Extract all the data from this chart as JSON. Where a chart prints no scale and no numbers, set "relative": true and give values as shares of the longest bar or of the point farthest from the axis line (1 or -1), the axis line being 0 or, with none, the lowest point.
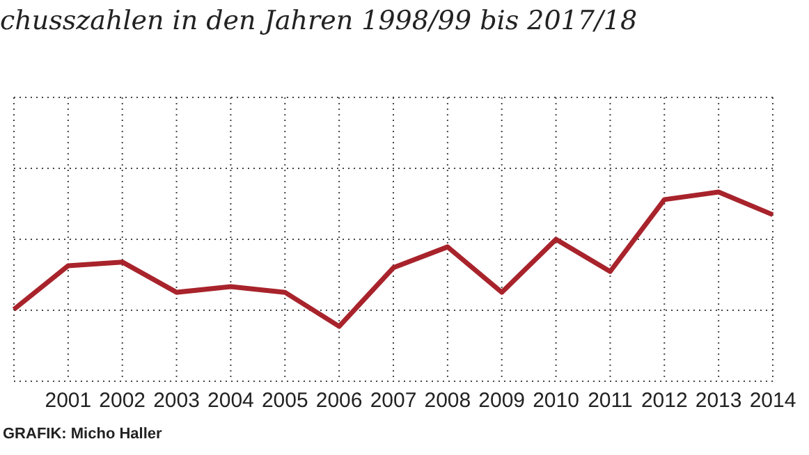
{
  "chart_data": {
    "type": "line",
    "title": "chusszahlen in den Jahren 1998/99 bis 2017/18",
    "relative": true,
    "categories": [
      null,
      "2001",
      "2002",
      "2003",
      "2004",
      "2005",
      "2006",
      "2007",
      "2008",
      "2009",
      "2010",
      "2011",
      "2012",
      "2013",
      "2014"
    ],
    "series": [
      {
        "color": "#a8232b",
        "values": [
          0.38,
          0.61,
          0.63,
          0.47,
          0.5,
          0.47,
          0.29,
          0.6,
          0.71,
          0.47,
          0.75,
          0.58,
          0.96,
          1,
          0.88
        ]
      }
    ],
    "grid": true,
    "marker": "none",
    "line_style": "solid",
    "annotations": [
      "GRAFIK: Micho Haller"
    ]
  }
}
